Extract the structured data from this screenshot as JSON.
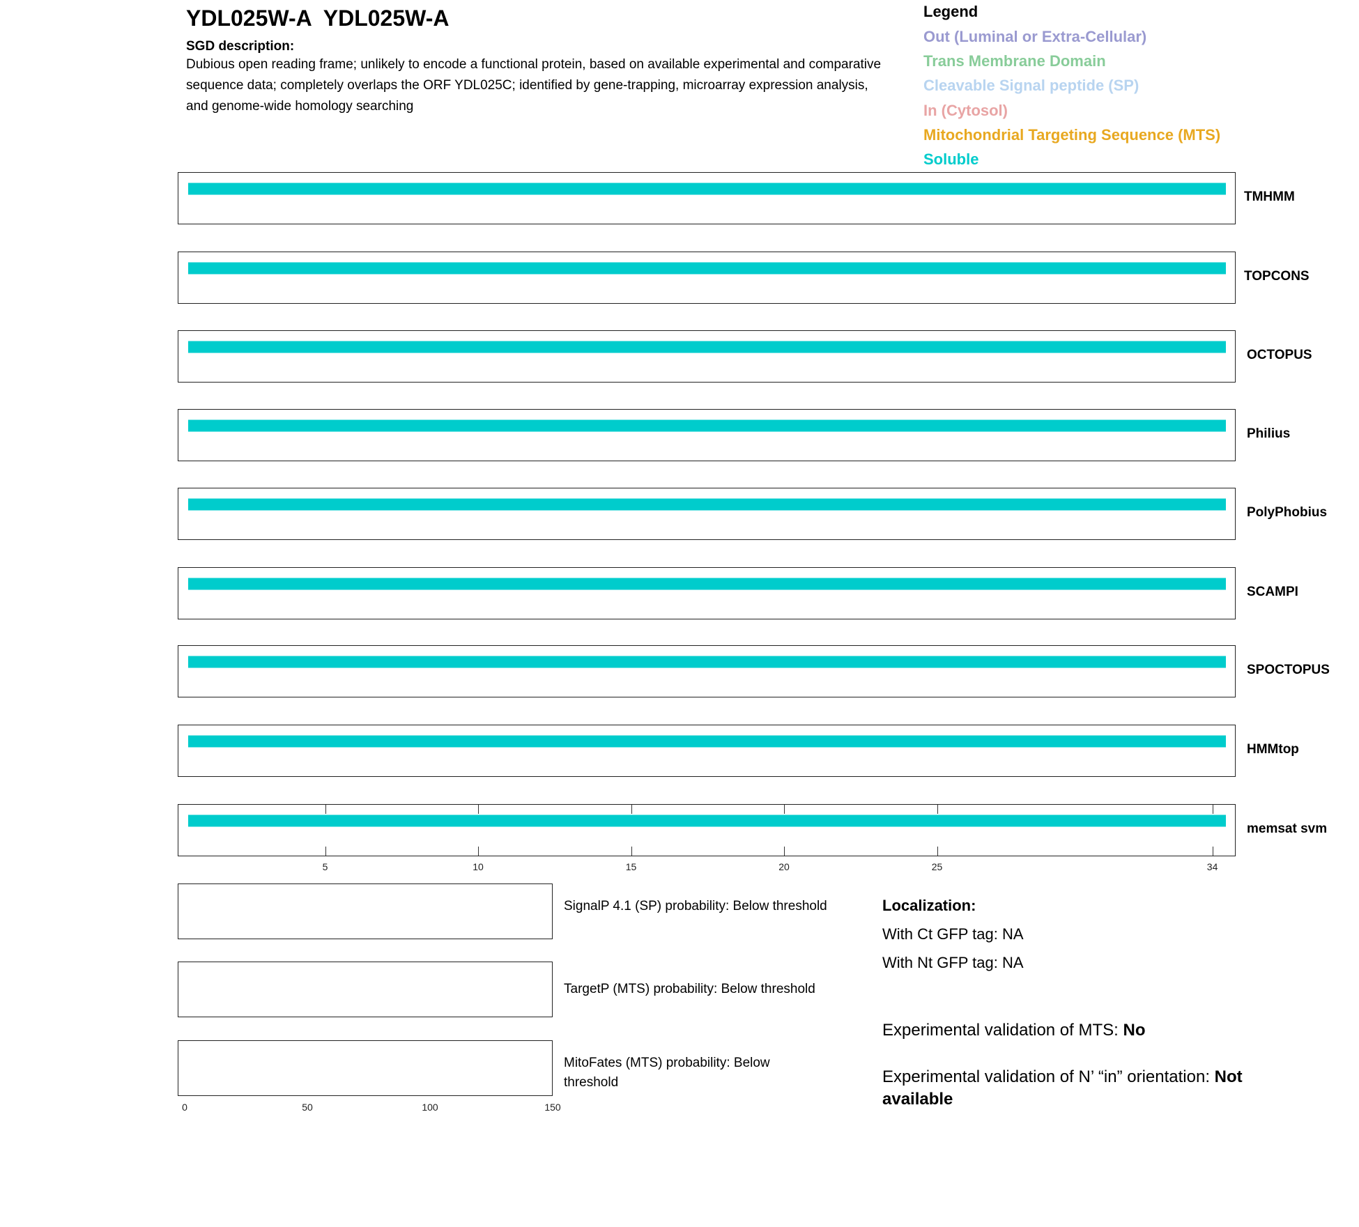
{
  "title": "YDL025W-A  YDL025W-A",
  "sgd": {
    "heading": "SGD description:",
    "text": "Dubious open reading frame; unlikely to encode a functional protein, based on available experimental and comparative sequence data; completely overlaps the ORF YDL025C; identified by gene-trapping, microarray expression analysis, and genome-wide homology searching"
  },
  "legend": {
    "title": "Legend",
    "items": [
      {
        "label": "Out (Luminal or Extra-Cellular)",
        "color": "#9a9ad0"
      },
      {
        "label": "Trans Membrane Domain",
        "color": "#88cc99"
      },
      {
        "label": "Cleavable Signal peptide (SP)",
        "color": "#b8d4f0"
      },
      {
        "label": "In (Cytosol)",
        "color": "#e8a4a4"
      },
      {
        "label": "Mitochondrial Targeting Sequence (MTS)",
        "color": "#e8a820"
      },
      {
        "label": "Soluble",
        "color": "#00cccc"
      }
    ]
  },
  "chart_data": {
    "type": "bar",
    "xlim": [
      1,
      34
    ],
    "x_ticks": [
      5,
      10,
      15,
      20,
      25,
      34
    ],
    "tracks": [
      {
        "name": "TMHMM",
        "segments": [
          {
            "start": 1,
            "end": 34,
            "class": "Soluble"
          }
        ]
      },
      {
        "name": "TOPCONS",
        "segments": [
          {
            "start": 1,
            "end": 34,
            "class": "Soluble"
          }
        ]
      },
      {
        "name": "OCTOPUS",
        "segments": [
          {
            "start": 1,
            "end": 34,
            "class": "Soluble"
          }
        ]
      },
      {
        "name": "Philius",
        "segments": [
          {
            "start": 1,
            "end": 34,
            "class": "Soluble"
          }
        ]
      },
      {
        "name": "PolyPhobius",
        "segments": [
          {
            "start": 1,
            "end": 34,
            "class": "Soluble"
          }
        ]
      },
      {
        "name": "SCAMPI",
        "segments": [
          {
            "start": 1,
            "end": 34,
            "class": "Soluble"
          }
        ]
      },
      {
        "name": "SPOCTOPUS",
        "segments": [
          {
            "start": 1,
            "end": 34,
            "class": "Soluble"
          }
        ]
      },
      {
        "name": "HMMtop",
        "segments": [
          {
            "start": 1,
            "end": 34,
            "class": "Soluble"
          }
        ]
      },
      {
        "name": "memsat svm",
        "segments": [
          {
            "start": 1,
            "end": 34,
            "class": "Soluble"
          }
        ]
      }
    ],
    "probability_axis": {
      "xlim": [
        0,
        150
      ],
      "ticks": [
        0,
        50,
        100,
        150
      ]
    }
  },
  "probabilities": [
    "SignalP 4.1 (SP) probability: Below threshold",
    "TargetP (MTS) probability: Below threshold",
    "MitoFates (MTS) probability: Below threshold"
  ],
  "localization": {
    "heading": "Localization:",
    "ct": "With Ct GFP tag: NA",
    "nt": "With Nt GFP tag: NA",
    "mts_label": "Experimental validation of MTS: ",
    "mts_value": "No",
    "orient_label": "Experimental validation of N’ “in” orientation: ",
    "orient_value": "Not available"
  }
}
